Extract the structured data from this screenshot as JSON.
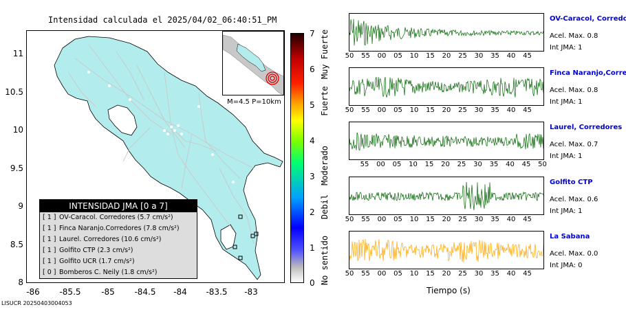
{
  "map": {
    "title": "Intensidad calculada el 2025/04/02_06:40:51_PM",
    "y_ticks": [
      "11",
      "10.5",
      "10",
      "9.5",
      "9",
      "8.5",
      "8"
    ],
    "x_ticks": [
      "-86",
      "-85.5",
      "-85",
      "-84.5",
      "-84",
      "-83.5",
      "-83"
    ],
    "inset_caption": "M=4.5 P=10km",
    "land_color": "#b3ecec",
    "epicenter_color": "#e00000"
  },
  "legend": {
    "title": "INTENSIDAD JMA [0 a 7]",
    "rows": [
      {
        "level": "[ 1 ]",
        "text": "OV-Caracol. Corredores (5.7 cm/s²)"
      },
      {
        "level": "[ 1 ]",
        "text": "Finca Naranjo.Corredores (7.8 cm/s²)"
      },
      {
        "level": "[ 1 ]",
        "text": "Laurel. Corredores (10.6 cm/s²)"
      },
      {
        "level": "[ 1 ]",
        "text": "Golfito CTP (2.3 cm/s²)"
      },
      {
        "level": "[ 1 ]",
        "text": "Golfito UCR (1.7 cm/s²)"
      },
      {
        "level": "[ 0 ]",
        "text": "Bomberos C. Neily (1.8 cm/s²)"
      }
    ]
  },
  "colorbar": {
    "ticks": [
      "7",
      "6",
      "5",
      "4",
      "3",
      "2",
      "1",
      "0"
    ],
    "categories": [
      "Muy Fuerte",
      "Fuerte",
      "Moderado",
      "Debil",
      "No sentido"
    ]
  },
  "stations": [
    {
      "name": "OV-Caracol, Corredores",
      "accel": "Acel. Max. 0.8",
      "int": "Int JMA: 1",
      "color": "#006400",
      "ticks": [
        "50",
        "55",
        "00",
        "05",
        "10",
        "15",
        "20",
        "25",
        "30",
        "35",
        "40",
        "45"
      ]
    },
    {
      "name": "Finca Naranjo,Corredores",
      "accel": "Acel. Max. 0.8",
      "int": "Int JMA: 1",
      "color": "#006400",
      "ticks": [
        "50",
        "55",
        "00",
        "05",
        "10",
        "15",
        "20",
        "25",
        "30",
        "35",
        "40",
        "45"
      ]
    },
    {
      "name": "Laurel, Corredores",
      "accel": "Acel. Max. 0.7",
      "int": "Int JMA: 1",
      "color": "#006400",
      "ticks": [
        "55",
        "00",
        "05",
        "10",
        "15",
        "20",
        "25",
        "30",
        "35",
        "40",
        "45",
        "50"
      ]
    },
    {
      "name": "Golfito CTP",
      "accel": "Acel. Max. 0.6",
      "int": "Int JMA: 1",
      "color": "#006400",
      "ticks": [
        "50",
        "55",
        "00",
        "05",
        "10",
        "15",
        "20",
        "25",
        "30",
        "35",
        "40",
        "45"
      ]
    },
    {
      "name": "La Sabana",
      "accel": "Acel. Max. 0.0",
      "int": "Int JMA: 0",
      "color": "#ffa500",
      "ticks": [
        "50",
        "55",
        "00",
        "05",
        "10",
        "15",
        "20",
        "25",
        "30",
        "35",
        "40",
        "45"
      ]
    }
  ],
  "xlabel": "Tiempo (s)",
  "footer": "LISUCR 20250403004053"
}
